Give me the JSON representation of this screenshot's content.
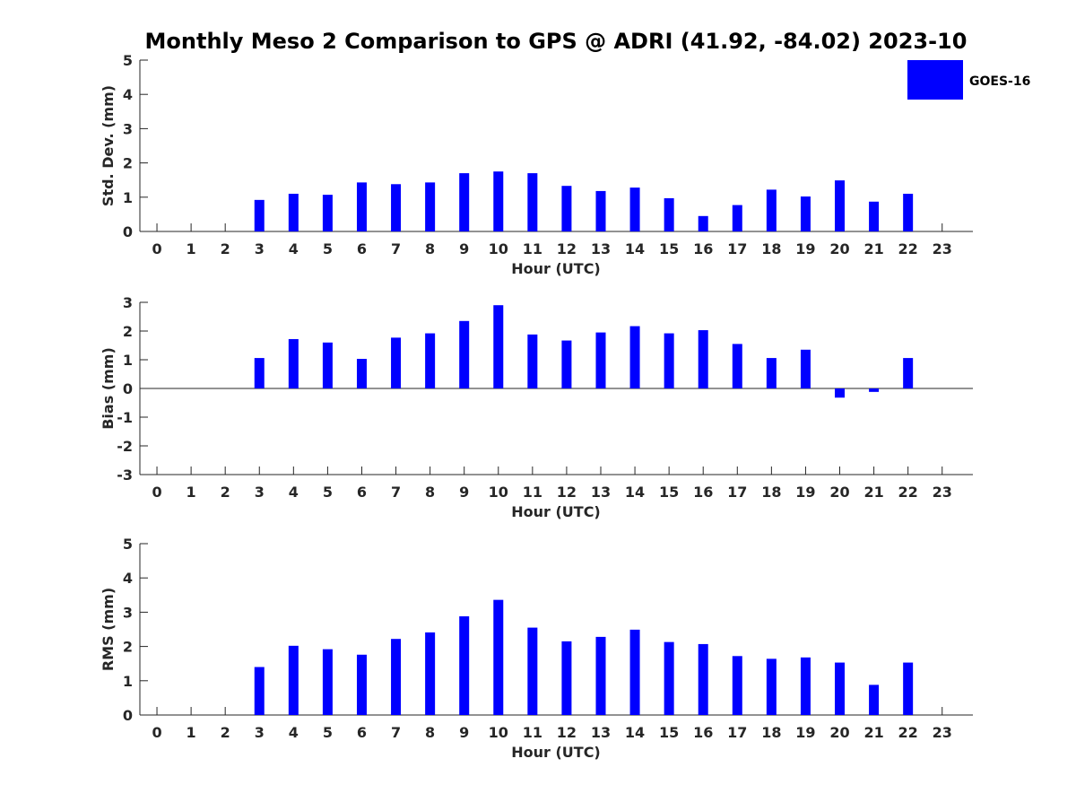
{
  "chart_data": {
    "title": "Monthly Meso 2 Comparison to GPS @ ADRI (41.92, -84.02) 2023-10",
    "type": "bar",
    "bar_color": "#0000ff",
    "legend": {
      "label": "GOES-16",
      "placement": "top-right"
    },
    "subplots": [
      {
        "type": "bar",
        "ylabel": "Std. Dev. (mm)",
        "xlabel": "Hour (UTC)",
        "ylim": [
          0,
          5
        ],
        "yticks": [
          0,
          1,
          2,
          3,
          4,
          5
        ],
        "x": [
          3,
          4,
          5,
          6,
          7,
          8,
          9,
          10,
          11,
          12,
          13,
          14,
          15,
          16,
          17,
          18,
          19,
          20,
          21,
          22
        ],
        "values": [
          0.92,
          1.1,
          1.07,
          1.43,
          1.38,
          1.43,
          1.7,
          1.75,
          1.7,
          1.33,
          1.18,
          1.28,
          0.97,
          0.45,
          0.77,
          1.22,
          1.02,
          1.49,
          0.87,
          1.1
        ]
      },
      {
        "type": "bar",
        "ylabel": "Bias (mm)",
        "xlabel": "Hour (UTC)",
        "ylim": [
          -3,
          3
        ],
        "yticks": [
          -3,
          -2,
          -1,
          0,
          1,
          2,
          3
        ],
        "zero_line": true,
        "x": [
          3,
          4,
          5,
          6,
          7,
          8,
          9,
          10,
          11,
          12,
          13,
          14,
          15,
          16,
          17,
          18,
          19,
          20,
          21,
          22
        ],
        "values": [
          1.06,
          1.72,
          1.6,
          1.03,
          1.77,
          1.92,
          2.35,
          2.9,
          1.88,
          1.67,
          1.95,
          2.17,
          1.92,
          2.03,
          1.55,
          1.06,
          1.35,
          -0.32,
          -0.12,
          1.06
        ]
      },
      {
        "type": "bar",
        "ylabel": "RMS (mm)",
        "xlabel": "Hour (UTC)",
        "ylim": [
          0,
          5
        ],
        "yticks": [
          0,
          1,
          2,
          3,
          4,
          5
        ],
        "x": [
          3,
          4,
          5,
          6,
          7,
          8,
          9,
          10,
          11,
          12,
          13,
          14,
          15,
          16,
          17,
          18,
          19,
          20,
          21,
          22
        ],
        "values": [
          1.4,
          2.02,
          1.92,
          1.76,
          2.22,
          2.41,
          2.88,
          3.36,
          2.55,
          2.15,
          2.28,
          2.49,
          2.13,
          2.07,
          1.72,
          1.64,
          1.68,
          1.53,
          0.88,
          1.53
        ]
      }
    ],
    "xticks": [
      "0",
      "1",
      "2",
      "3",
      "4",
      "5",
      "6",
      "7",
      "8",
      "9",
      "10",
      "11",
      "12",
      "13",
      "14",
      "15",
      "16",
      "17",
      "18",
      "19",
      "20",
      "21",
      "22",
      "23"
    ]
  }
}
